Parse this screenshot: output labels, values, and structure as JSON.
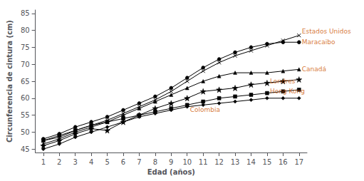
{
  "chart_data": {
    "type": "line",
    "x": [
      1,
      2,
      3,
      4,
      5,
      6,
      7,
      8,
      9,
      10,
      11,
      12,
      13,
      14,
      15,
      16,
      17
    ],
    "series": [
      {
        "name": "Colombia",
        "color": "#000000",
        "marker": "diamond",
        "values": [
          45.0,
          46.5,
          48.5,
          50.0,
          51.5,
          53.0,
          54.5,
          55.5,
          56.5,
          57.5,
          58.0,
          58.5,
          59.0,
          59.5,
          60.0,
          60.0,
          60.0
        ]
      },
      {
        "name": "Hong Kong",
        "color": "#000000",
        "marker": "square",
        "values": [
          47.5,
          49.0,
          50.5,
          52.0,
          53.0,
          54.0,
          55.0,
          56.0,
          57.0,
          58.0,
          59.0,
          60.0,
          60.5,
          61.0,
          61.5,
          62.0,
          62.5
        ]
      },
      {
        "name": "Londres",
        "color": "#000000",
        "marker": "star",
        "values": [
          46.0,
          47.5,
          49.5,
          51.0,
          50.5,
          53.0,
          55.0,
          57.0,
          58.5,
          60.0,
          62.0,
          62.5,
          63.0,
          64.0,
          64.5,
          65.0,
          65.5
        ]
      },
      {
        "name": "Canadá",
        "color": "#000000",
        "marker": "triangle",
        "values": [
          46.5,
          48.0,
          50.0,
          51.5,
          53.0,
          55.0,
          57.0,
          59.0,
          61.0,
          63.0,
          65.0,
          66.5,
          67.5,
          67.5,
          67.5,
          68.0,
          68.5
        ]
      },
      {
        "name": "Maracaibo",
        "color": "#000000",
        "marker": "circle",
        "values": [
          48.0,
          49.5,
          51.5,
          53.0,
          54.5,
          56.5,
          58.5,
          60.5,
          63.0,
          66.0,
          69.0,
          71.5,
          73.5,
          75.0,
          76.0,
          76.5,
          76.5
        ]
      },
      {
        "name": "Estados Unidos",
        "color": "#000000",
        "marker": "x",
        "values": [
          47.5,
          48.5,
          50.5,
          52.0,
          53.5,
          55.5,
          57.5,
          59.5,
          62.0,
          65.0,
          68.0,
          70.5,
          72.5,
          74.0,
          75.5,
          77.0,
          78.5
        ]
      }
    ],
    "annotations": [
      {
        "text": "Estados Unidos",
        "x": 17,
        "y": 78.5,
        "color": "#cc5500"
      },
      {
        "text": "Maracaibo",
        "x": 17,
        "y": 76.5,
        "color": "#cc5500"
      },
      {
        "text": "Canadá",
        "x": 17,
        "y": 68.5,
        "color": "#cc5500"
      },
      {
        "text": "Londres",
        "x": 15,
        "y": 65.0,
        "color": "#cc5500"
      },
      {
        "text": "Hong Kong",
        "x": 15,
        "y": 62.0,
        "color": "#cc5500"
      },
      {
        "text": "Colombia",
        "x": 10,
        "y": 56.5,
        "color": "#cc5500"
      }
    ],
    "xlabel": "Edad (años)",
    "ylabel": "Circunferencia de cintura (cm)",
    "xlim": [
      0.5,
      17.5
    ],
    "ylim": [
      44,
      86
    ],
    "xticks": [
      1,
      2,
      3,
      4,
      5,
      6,
      7,
      8,
      9,
      10,
      11,
      12,
      13,
      14,
      15,
      16,
      17
    ],
    "yticks": [
      45,
      50,
      55,
      60,
      65,
      70,
      75,
      80,
      85
    ],
    "grid": false
  }
}
